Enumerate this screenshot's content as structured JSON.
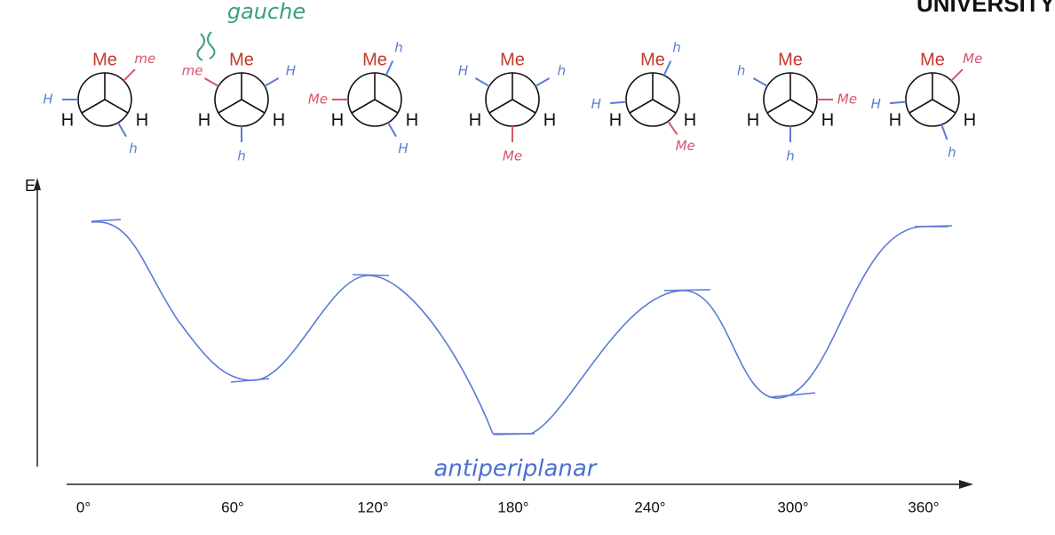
{
  "header": {
    "logo": "UNIVERSITY"
  },
  "annotations": {
    "gauche": "gauche",
    "antiperiplanar": "antiperiplanar"
  },
  "newman_projections": [
    {
      "front": [
        "Me",
        "H",
        "H"
      ],
      "back": [
        "me",
        "H",
        "h"
      ]
    },
    {
      "front": [
        "Me",
        "H",
        "H"
      ],
      "back": [
        "me",
        "H",
        "h"
      ]
    },
    {
      "front": [
        "Me",
        "H",
        "H"
      ],
      "back": [
        "Me",
        "h",
        "H"
      ]
    },
    {
      "front": [
        "Me",
        "H",
        "H"
      ],
      "back": [
        "Me",
        "H",
        "h"
      ]
    },
    {
      "front": [
        "Me",
        "H",
        "H"
      ],
      "back": [
        "Me",
        "h",
        "H"
      ]
    },
    {
      "front": [
        "Me",
        "H",
        "H"
      ],
      "back": [
        "Me",
        "h",
        "h"
      ]
    },
    {
      "front": [
        "Me",
        "H",
        "H"
      ],
      "back": [
        "Me",
        "H",
        "h"
      ]
    }
  ],
  "plot": {
    "y_axis_label": "E",
    "x_axis_labels": [
      "0°",
      "60°",
      "120°",
      "180°",
      "240°",
      "300°",
      "360°"
    ]
  }
}
